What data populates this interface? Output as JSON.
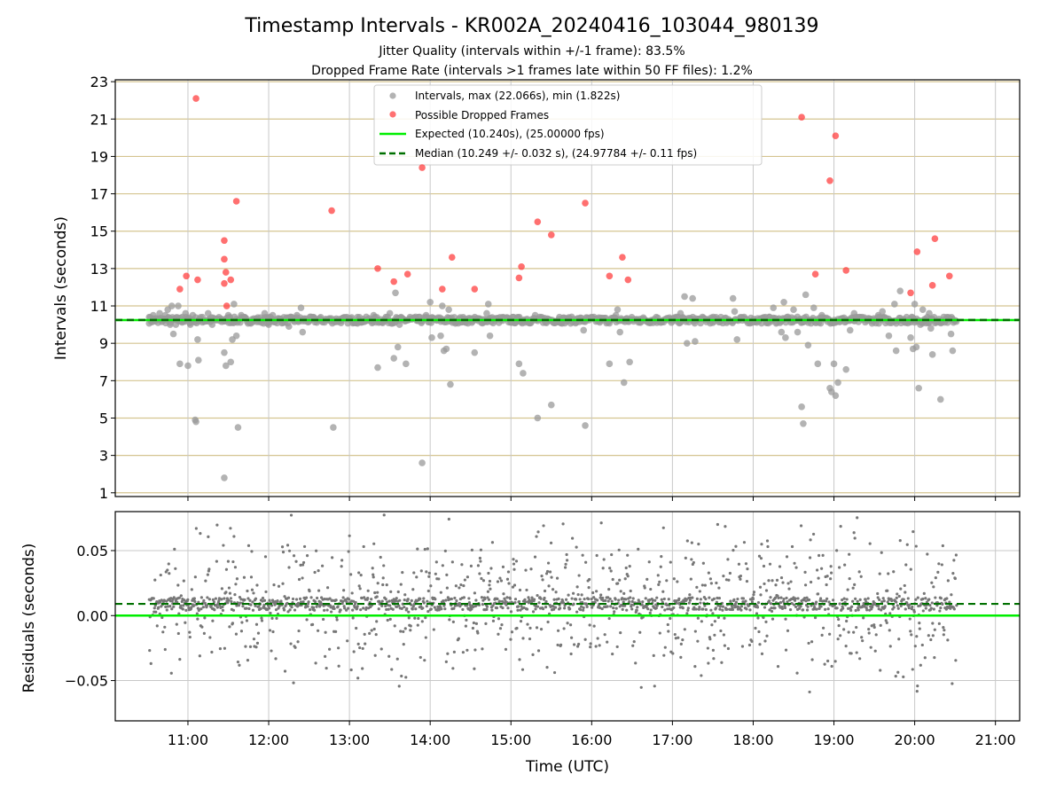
{
  "chart_data": [
    {
      "type": "scatter",
      "title": "Timestamp Intervals - KR002A_20240416_103044_980139",
      "subtitle_lines": [
        "Jitter Quality (intervals within +/-1 frame): 83.5%",
        "Dropped Frame Rate (intervals >1 frames late within 50 FF files): 1.2%"
      ],
      "xlabel": "",
      "ylabel": "Intervals (seconds)",
      "ylim": [
        0.8,
        23.1
      ],
      "y_ticks": [
        "1",
        "3",
        "5",
        "7",
        "9",
        "11",
        "13",
        "15",
        "17",
        "19",
        "21",
        "23"
      ],
      "x_range_hours": [
        10.1,
        21.3
      ],
      "x_ticks_hours": [
        11,
        12,
        13,
        14,
        15,
        16,
        17,
        18,
        19,
        20,
        21
      ],
      "grid": "horizontal lines at odd integers, vertical lines at each hour",
      "legend_position": "top-center",
      "legend": [
        {
          "label": "Intervals, max (22.066s), min (1.822s)",
          "kind": "marker",
          "color": "#999999"
        },
        {
          "label": "Possible Dropped Frames",
          "kind": "marker",
          "color": "#ff4040"
        },
        {
          "label": "Expected (10.240s), (25.00000 fps)",
          "kind": "line",
          "color": "#00ee00"
        },
        {
          "label": "Median (10.249 +/- 0.032 s), (24.97784 +/- 0.11 fps)",
          "kind": "dashed",
          "color": "#007000"
        }
      ],
      "expected_interval": 10.24,
      "median_interval": 10.249,
      "series": [
        {
          "name": "Intervals, max (22.066s), min (1.822s)",
          "color": "#999999",
          "baseline_start_hour": 10.52,
          "baseline_end_hour": 20.52,
          "baseline_y": 10.24,
          "points": [
            [
              10.52,
              10.4
            ],
            [
              10.57,
              10.5
            ],
            [
              10.63,
              10.1
            ],
            [
              10.65,
              10.6
            ],
            [
              10.7,
              10.3
            ],
            [
              10.72,
              10.5
            ],
            [
              10.75,
              10.8
            ],
            [
              10.78,
              10.0
            ],
            [
              10.8,
              11.0
            ],
            [
              10.82,
              9.5
            ],
            [
              10.85,
              10.0
            ],
            [
              10.88,
              11.0
            ],
            [
              10.9,
              7.9
            ],
            [
              10.93,
              10.4
            ],
            [
              10.95,
              10.2
            ],
            [
              10.97,
              10.6
            ],
            [
              11.0,
              7.8
            ],
            [
              11.03,
              10.0
            ],
            [
              11.06,
              10.5
            ],
            [
              11.09,
              4.9
            ],
            [
              11.1,
              4.8
            ],
            [
              11.12,
              9.2
            ],
            [
              11.13,
              8.1
            ],
            [
              11.18,
              10.4
            ],
            [
              11.2,
              10.2
            ],
            [
              11.25,
              10.6
            ],
            [
              11.3,
              10.0
            ],
            [
              11.35,
              10.3
            ],
            [
              11.45,
              1.8
            ],
            [
              11.45,
              8.5
            ],
            [
              11.47,
              7.8
            ],
            [
              11.5,
              10.5
            ],
            [
              11.52,
              10.4
            ],
            [
              11.53,
              8.0
            ],
            [
              11.55,
              9.2
            ],
            [
              11.57,
              11.1
            ],
            [
              11.6,
              9.4
            ],
            [
              11.62,
              4.5
            ],
            [
              11.66,
              10.5
            ],
            [
              11.7,
              10.4
            ],
            [
              11.8,
              10.2
            ],
            [
              11.85,
              10.3
            ],
            [
              11.95,
              10.6
            ],
            [
              12.0,
              10.0
            ],
            [
              12.05,
              10.5
            ],
            [
              12.15,
              10.3
            ],
            [
              12.25,
              9.9
            ],
            [
              12.35,
              10.5
            ],
            [
              12.4,
              10.9
            ],
            [
              12.42,
              9.6
            ],
            [
              12.55,
              10.4
            ],
            [
              12.65,
              10.2
            ],
            [
              12.75,
              10.3
            ],
            [
              12.8,
              4.5
            ],
            [
              12.9,
              10.2
            ],
            [
              13.1,
              10.4
            ],
            [
              13.2,
              10.2
            ],
            [
              13.3,
              10.5
            ],
            [
              13.35,
              7.7
            ],
            [
              13.45,
              10.4
            ],
            [
              13.5,
              10.6
            ],
            [
              13.55,
              8.2
            ],
            [
              13.57,
              11.7
            ],
            [
              13.6,
              8.8
            ],
            [
              13.62,
              10.0
            ],
            [
              13.65,
              10.3
            ],
            [
              13.7,
              7.9
            ],
            [
              13.75,
              10.4
            ],
            [
              13.85,
              10.2
            ],
            [
              13.9,
              2.6
            ],
            [
              13.95,
              10.5
            ],
            [
              14.0,
              11.2
            ],
            [
              14.02,
              9.3
            ],
            [
              14.1,
              10.3
            ],
            [
              14.13,
              9.4
            ],
            [
              14.15,
              11.0
            ],
            [
              14.17,
              8.6
            ],
            [
              14.2,
              8.7
            ],
            [
              14.23,
              10.8
            ],
            [
              14.25,
              6.8
            ],
            [
              14.4,
              10.3
            ],
            [
              14.55,
              8.5
            ],
            [
              14.6,
              10.2
            ],
            [
              14.7,
              10.6
            ],
            [
              14.72,
              11.1
            ],
            [
              14.74,
              9.4
            ],
            [
              14.9,
              10.4
            ],
            [
              15.0,
              10.2
            ],
            [
              15.1,
              7.9
            ],
            [
              15.15,
              7.4
            ],
            [
              15.2,
              10.3
            ],
            [
              15.3,
              10.5
            ],
            [
              15.33,
              5.0
            ],
            [
              15.4,
              10.1
            ],
            [
              15.5,
              5.7
            ],
            [
              15.6,
              10.4
            ],
            [
              15.7,
              10.3
            ],
            [
              15.9,
              9.7
            ],
            [
              15.92,
              4.6
            ],
            [
              16.0,
              10.4
            ],
            [
              16.1,
              10.2
            ],
            [
              16.22,
              7.9
            ],
            [
              16.3,
              10.5
            ],
            [
              16.32,
              10.8
            ],
            [
              16.35,
              9.6
            ],
            [
              16.4,
              6.9
            ],
            [
              16.47,
              8.0
            ],
            [
              16.6,
              10.3
            ],
            [
              16.8,
              10.4
            ],
            [
              17.0,
              10.2
            ],
            [
              17.1,
              10.6
            ],
            [
              17.15,
              11.5
            ],
            [
              17.18,
              9.0
            ],
            [
              17.25,
              11.4
            ],
            [
              17.28,
              9.1
            ],
            [
              17.4,
              10.3
            ],
            [
              17.5,
              10.1
            ],
            [
              17.6,
              10.4
            ],
            [
              17.75,
              11.4
            ],
            [
              17.77,
              10.7
            ],
            [
              17.8,
              9.2
            ],
            [
              17.9,
              10.3
            ],
            [
              18.0,
              10.2
            ],
            [
              18.2,
              10.4
            ],
            [
              18.25,
              10.9
            ],
            [
              18.35,
              9.6
            ],
            [
              18.38,
              11.2
            ],
            [
              18.4,
              9.3
            ],
            [
              18.5,
              10.8
            ],
            [
              18.55,
              9.6
            ],
            [
              18.6,
              5.6
            ],
            [
              18.62,
              4.7
            ],
            [
              18.65,
              11.6
            ],
            [
              18.68,
              8.9
            ],
            [
              18.75,
              10.9
            ],
            [
              18.8,
              7.9
            ],
            [
              18.85,
              10.5
            ],
            [
              18.9,
              10.3
            ],
            [
              18.95,
              6.6
            ],
            [
              18.97,
              6.4
            ],
            [
              19.0,
              7.9
            ],
            [
              19.02,
              6.2
            ],
            [
              19.05,
              6.9
            ],
            [
              19.15,
              7.6
            ],
            [
              19.2,
              9.7
            ],
            [
              19.25,
              10.6
            ],
            [
              19.35,
              10.4
            ],
            [
              19.45,
              10.2
            ],
            [
              19.55,
              10.5
            ],
            [
              19.6,
              10.7
            ],
            [
              19.68,
              9.4
            ],
            [
              19.75,
              11.1
            ],
            [
              19.77,
              8.6
            ],
            [
              19.82,
              11.8
            ],
            [
              19.9,
              10.4
            ],
            [
              19.95,
              9.3
            ],
            [
              19.98,
              8.7
            ],
            [
              20.0,
              11.1
            ],
            [
              20.02,
              8.8
            ],
            [
              20.05,
              6.6
            ],
            [
              20.07,
              10.0
            ],
            [
              20.1,
              10.8
            ],
            [
              20.18,
              10.6
            ],
            [
              20.2,
              9.8
            ],
            [
              20.22,
              8.4
            ],
            [
              20.3,
              10.3
            ],
            [
              20.32,
              6.0
            ],
            [
              20.4,
              10.4
            ],
            [
              20.45,
              9.5
            ],
            [
              20.47,
              8.6
            ]
          ]
        },
        {
          "name": "Possible Dropped Frames",
          "color": "#ff4040",
          "points": [
            [
              10.9,
              11.9
            ],
            [
              10.98,
              12.6
            ],
            [
              11.1,
              22.1
            ],
            [
              11.12,
              12.4
            ],
            [
              11.45,
              14.5
            ],
            [
              11.45,
              13.5
            ],
            [
              11.45,
              12.2
            ],
            [
              11.47,
              12.8
            ],
            [
              11.48,
              11.0
            ],
            [
              11.53,
              12.4
            ],
            [
              11.6,
              16.6
            ],
            [
              12.78,
              16.1
            ],
            [
              13.35,
              13.0
            ],
            [
              13.55,
              12.3
            ],
            [
              13.72,
              12.7
            ],
            [
              13.9,
              18.4
            ],
            [
              14.15,
              11.9
            ],
            [
              14.27,
              13.6
            ],
            [
              14.55,
              11.9
            ],
            [
              15.1,
              12.5
            ],
            [
              15.13,
              13.1
            ],
            [
              15.33,
              15.5
            ],
            [
              15.5,
              14.8
            ],
            [
              15.92,
              16.5
            ],
            [
              16.22,
              12.6
            ],
            [
              16.38,
              13.6
            ],
            [
              16.45,
              12.4
            ],
            [
              18.6,
              21.1
            ],
            [
              18.77,
              12.7
            ],
            [
              18.95,
              17.7
            ],
            [
              19.02,
              20.1
            ],
            [
              19.15,
              12.9
            ],
            [
              19.95,
              11.7
            ],
            [
              20.03,
              13.9
            ],
            [
              20.22,
              12.1
            ],
            [
              20.25,
              14.6
            ],
            [
              20.43,
              12.6
            ]
          ]
        }
      ]
    },
    {
      "type": "scatter",
      "xlabel": "Time (UTC)",
      "ylabel": "Residuals (seconds)",
      "ylim": [
        -0.081,
        0.08
      ],
      "y_ticks": [
        "0.05",
        "0.00",
        "−0.05"
      ],
      "x_tick_labels": [
        "11:00",
        "12:00",
        "13:00",
        "14:00",
        "15:00",
        "16:00",
        "17:00",
        "18:00",
        "19:00",
        "20:00",
        "21:00"
      ],
      "grid": "vertical at each hour, horizontal at -0.05, 0, 0.05",
      "series": [
        {
          "name": "Residuals",
          "color": "#777777",
          "x_range_hours": [
            10.52,
            20.52
          ],
          "center": 0.009,
          "spread": 0.08
        },
        {
          "name": "Expected",
          "kind": "line",
          "y": 0.0,
          "color": "#00ee00"
        },
        {
          "name": "Median",
          "kind": "dashed",
          "y": 0.009,
          "color": "#007000"
        }
      ]
    }
  ]
}
